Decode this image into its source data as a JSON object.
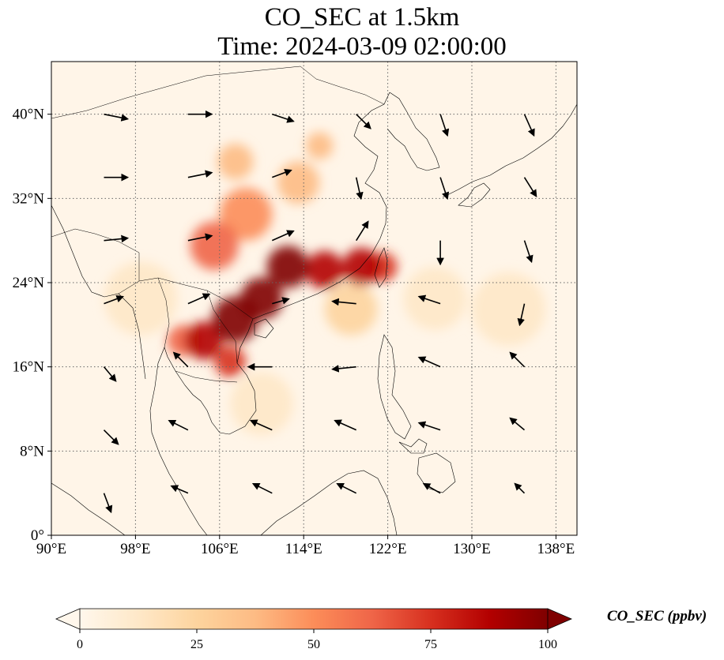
{
  "figure": {
    "title_line1": "CO_SEC at 1.5km",
    "title_line2": "Time: 2024-03-09 02:00:00"
  },
  "map": {
    "lon_range": [
      90,
      140
    ],
    "lat_range": [
      0,
      45
    ],
    "gridlines": "dotted",
    "lon_ticks": [
      {
        "value": 90,
        "label": "90°E"
      },
      {
        "value": 98,
        "label": "98°E"
      },
      {
        "value": 106,
        "label": "106°E"
      },
      {
        "value": 114,
        "label": "114°E"
      },
      {
        "value": 122,
        "label": "122°E"
      },
      {
        "value": 130,
        "label": "130°E"
      },
      {
        "value": 138,
        "label": "138°E"
      }
    ],
    "lat_ticks": [
      {
        "value": 0,
        "label": "0°"
      },
      {
        "value": 8,
        "label": "8°N"
      },
      {
        "value": 16,
        "label": "16°N"
      },
      {
        "value": 24,
        "label": "24°N"
      },
      {
        "value": 32,
        "label": "32°N"
      },
      {
        "value": 40,
        "label": "40°N"
      }
    ]
  },
  "colorbar": {
    "label": "CO_SEC (ppbv)",
    "min": 0,
    "max": 100,
    "extend": "both",
    "colormap": "OrRd",
    "colors": [
      "#fff7ec",
      "#fee8c8",
      "#fdd49e",
      "#fdbb84",
      "#fc8d59",
      "#ef6548",
      "#d7301f",
      "#b30000",
      "#7f0000"
    ],
    "ticks": [
      {
        "value": 0,
        "label": "0"
      },
      {
        "value": 25,
        "label": "25"
      },
      {
        "value": 50,
        "label": "50"
      },
      {
        "value": 75,
        "label": "75"
      },
      {
        "value": 100,
        "label": "100"
      }
    ]
  },
  "chart_data": {
    "type": "heatmap",
    "variable": "CO_SEC",
    "units": "ppbv",
    "plumes": [
      {
        "lon": 107.5,
        "lat": 20.5,
        "value": 100,
        "spread": 2.2
      },
      {
        "lon": 110,
        "lat": 22.5,
        "value": 100,
        "spread": 2.0
      },
      {
        "lon": 112.5,
        "lat": 25.5,
        "value": 100,
        "spread": 2.0
      },
      {
        "lon": 116,
        "lat": 25.2,
        "value": 92,
        "spread": 1.8
      },
      {
        "lon": 119.5,
        "lat": 25.5,
        "value": 85,
        "spread": 1.8
      },
      {
        "lon": 121.5,
        "lat": 25.5,
        "value": 80,
        "spread": 1.4
      },
      {
        "lon": 104.5,
        "lat": 18.5,
        "value": 90,
        "spread": 1.8
      },
      {
        "lon": 107,
        "lat": 16.5,
        "value": 80,
        "spread": 1.5
      },
      {
        "lon": 102.5,
        "lat": 18.5,
        "value": 68,
        "spread": 1.5
      },
      {
        "lon": 105.5,
        "lat": 27.5,
        "value": 60,
        "spread": 2.3
      },
      {
        "lon": 108.5,
        "lat": 30.5,
        "value": 52,
        "spread": 2.5
      },
      {
        "lon": 107.5,
        "lat": 35.5,
        "value": 42,
        "spread": 1.7
      },
      {
        "lon": 113.5,
        "lat": 33.5,
        "value": 32,
        "spread": 2.0
      },
      {
        "lon": 115.5,
        "lat": 37.0,
        "value": 40,
        "spread": 1.3
      },
      {
        "lon": 118.5,
        "lat": 21.5,
        "value": 22,
        "spread": 2.5
      },
      {
        "lon": 126.5,
        "lat": 22.5,
        "value": 14,
        "spread": 3.0
      },
      {
        "lon": 133.5,
        "lat": 21.5,
        "value": 10,
        "spread": 3.5
      },
      {
        "lon": 110,
        "lat": 12.5,
        "value": 14,
        "spread": 3.0
      },
      {
        "lon": 98.5,
        "lat": 22.5,
        "value": 12,
        "spread": 3.5
      }
    ],
    "wind_vectors": [
      {
        "lon": 95,
        "lat": 40,
        "u": 1.0,
        "v": -0.2
      },
      {
        "lon": 103,
        "lat": 40,
        "u": 1.0,
        "v": 0.0
      },
      {
        "lon": 111,
        "lat": 40,
        "u": 0.9,
        "v": -0.3
      },
      {
        "lon": 119,
        "lat": 40,
        "u": 0.6,
        "v": -0.6
      },
      {
        "lon": 127,
        "lat": 40,
        "u": 0.3,
        "v": -0.9
      },
      {
        "lon": 135,
        "lat": 40,
        "u": 0.4,
        "v": -0.9
      },
      {
        "lon": 95,
        "lat": 34,
        "u": 1.0,
        "v": 0.0
      },
      {
        "lon": 103,
        "lat": 34,
        "u": 1.0,
        "v": 0.2
      },
      {
        "lon": 111,
        "lat": 34,
        "u": 0.8,
        "v": 0.3
      },
      {
        "lon": 119,
        "lat": 34,
        "u": 0.2,
        "v": -0.9
      },
      {
        "lon": 127,
        "lat": 34,
        "u": 0.3,
        "v": -0.9
      },
      {
        "lon": 135,
        "lat": 34,
        "u": 0.5,
        "v": -0.8
      },
      {
        "lon": 95,
        "lat": 28,
        "u": 1.0,
        "v": 0.1
      },
      {
        "lon": 103,
        "lat": 28,
        "u": 1.0,
        "v": 0.2
      },
      {
        "lon": 111,
        "lat": 28,
        "u": 0.9,
        "v": 0.4
      },
      {
        "lon": 119,
        "lat": 28,
        "u": 0.5,
        "v": 0.8
      },
      {
        "lon": 127,
        "lat": 28,
        "u": 0.0,
        "v": -1.0
      },
      {
        "lon": 135,
        "lat": 28,
        "u": 0.3,
        "v": -0.9
      },
      {
        "lon": 95,
        "lat": 22,
        "u": 0.8,
        "v": 0.3
      },
      {
        "lon": 103,
        "lat": 22,
        "u": 0.9,
        "v": 0.4
      },
      {
        "lon": 111,
        "lat": 22,
        "u": 0.7,
        "v": 0.2
      },
      {
        "lon": 119,
        "lat": 22,
        "u": -1.0,
        "v": 0.1
      },
      {
        "lon": 127,
        "lat": 22,
        "u": -0.9,
        "v": 0.3
      },
      {
        "lon": 135,
        "lat": 22,
        "u": -0.2,
        "v": -0.9
      },
      {
        "lon": 95,
        "lat": 16,
        "u": 0.5,
        "v": -0.6
      },
      {
        "lon": 103,
        "lat": 16,
        "u": -0.6,
        "v": 0.6
      },
      {
        "lon": 111,
        "lat": 16,
        "u": -1.0,
        "v": 0.0
      },
      {
        "lon": 119,
        "lat": 16,
        "u": -1.0,
        "v": -0.1
      },
      {
        "lon": 127,
        "lat": 16,
        "u": -0.9,
        "v": 0.4
      },
      {
        "lon": 135,
        "lat": 16,
        "u": -0.6,
        "v": 0.6
      },
      {
        "lon": 95,
        "lat": 10,
        "u": 0.6,
        "v": -0.6
      },
      {
        "lon": 103,
        "lat": 10,
        "u": -0.8,
        "v": 0.4
      },
      {
        "lon": 111,
        "lat": 10,
        "u": -0.9,
        "v": 0.4
      },
      {
        "lon": 119,
        "lat": 10,
        "u": -0.9,
        "v": 0.4
      },
      {
        "lon": 127,
        "lat": 10,
        "u": -0.9,
        "v": 0.3
      },
      {
        "lon": 135,
        "lat": 10,
        "u": -0.6,
        "v": 0.5
      },
      {
        "lon": 95,
        "lat": 4,
        "u": 0.3,
        "v": -0.8
      },
      {
        "lon": 103,
        "lat": 4,
        "u": -0.7,
        "v": 0.3
      },
      {
        "lon": 111,
        "lat": 4,
        "u": -0.8,
        "v": 0.4
      },
      {
        "lon": 119,
        "lat": 4,
        "u": -0.8,
        "v": 0.4
      },
      {
        "lon": 127,
        "lat": 4,
        "u": -0.7,
        "v": 0.4
      },
      {
        "lon": 135,
        "lat": 4,
        "u": -0.4,
        "v": 0.4
      }
    ]
  }
}
